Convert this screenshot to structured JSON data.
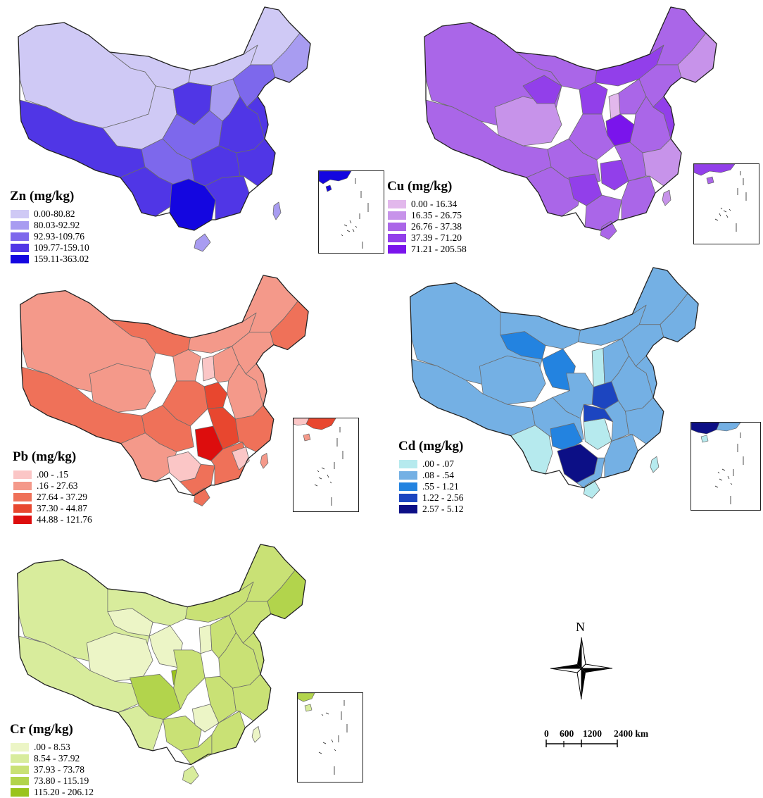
{
  "maps": [
    {
      "id": "zn",
      "title": "Zn (mg/kg)",
      "classes": [
        "0.00-80.82",
        "80.03-92.92",
        "92.93-109.76",
        "109.77-159.10",
        "159.11-363.02"
      ],
      "colors": [
        "#cfc9f5",
        "#a89cf1",
        "#7d68ec",
        "#5036e6",
        "#1406e0"
      ]
    },
    {
      "id": "cu",
      "title": "Cu (mg/kg)",
      "classes": [
        "0.00 - 16.34",
        "16.35 - 26.75",
        "26.76 - 37.38",
        "37.39 - 71.20",
        "71.21 - 205.58"
      ],
      "colors": [
        "#e2b8ec",
        "#c793ea",
        "#aa66e8",
        "#923fea",
        "#7a14ec"
      ]
    },
    {
      "id": "pb",
      "title": "Pb (mg/kg)",
      "classes": [
        ".00 - .15",
        ".16 - 27.63",
        "27.64 - 37.29",
        "37.30 - 44.87",
        "44.88 - 121.76"
      ],
      "colors": [
        "#fbc6c6",
        "#f4998a",
        "#ef7159",
        "#e8472f",
        "#dd0d0d"
      ]
    },
    {
      "id": "cd",
      "title": "Cd (mg/kg)",
      "classes": [
        ".00 - .07",
        ".08 - .54",
        ".55 - 1.21",
        "1.22 - 2.56",
        "2.57 - 5.12"
      ],
      "colors": [
        "#b6eaee",
        "#74b0e4",
        "#2383e0",
        "#1c45c0",
        "#0c0f86"
      ]
    },
    {
      "id": "cr",
      "title": "Cr (mg/kg)",
      "classes": [
        ".00 - 8.53",
        "8.54 - 37.92",
        "37.93 - 73.78",
        "73.80 - 115.19",
        "115.20 - 206.12"
      ],
      "colors": [
        "#ecf5c6",
        "#d8ec9c",
        "#c9e175",
        "#b2d44c",
        "#9ac41c"
      ]
    }
  ],
  "north_arrow": {
    "label": "N"
  },
  "scale_bar": {
    "ticks": [
      "0",
      "600",
      "1200",
      "2400 km"
    ]
  }
}
